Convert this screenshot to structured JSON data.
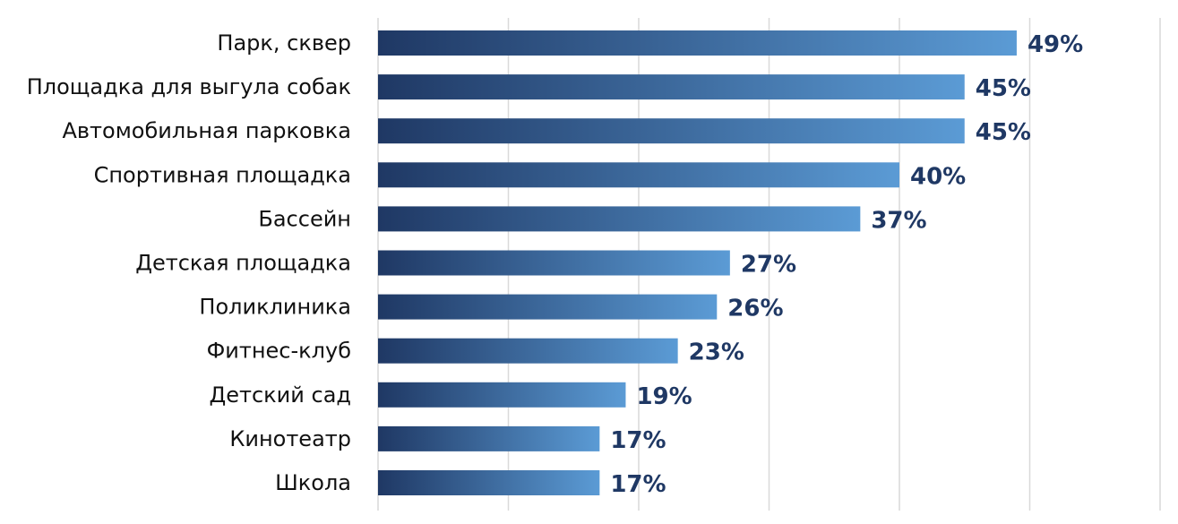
{
  "chart_data": {
    "type": "bar",
    "orientation": "horizontal",
    "categories": [
      "Парк, сквер",
      "Площадка для выгула собак",
      "Автомобильная парковка",
      "Спортивная площадка",
      "Бассейн",
      "Детская площадка",
      "Поликлиника",
      "Фитнес-клуб",
      "Детский сад",
      "Кинотеатр",
      "Школа"
    ],
    "values": [
      49,
      45,
      45,
      40,
      37,
      27,
      26,
      23,
      19,
      17,
      17
    ],
    "value_labels": [
      "49%",
      "45%",
      "45%",
      "40%",
      "37%",
      "27%",
      "26%",
      "23%",
      "19%",
      "17%",
      "17%"
    ],
    "xlim": [
      0,
      60
    ],
    "grid": true,
    "bar_gradient": [
      "#1f3864",
      "#5b9bd5"
    ],
    "label_color": "#1f3864"
  }
}
